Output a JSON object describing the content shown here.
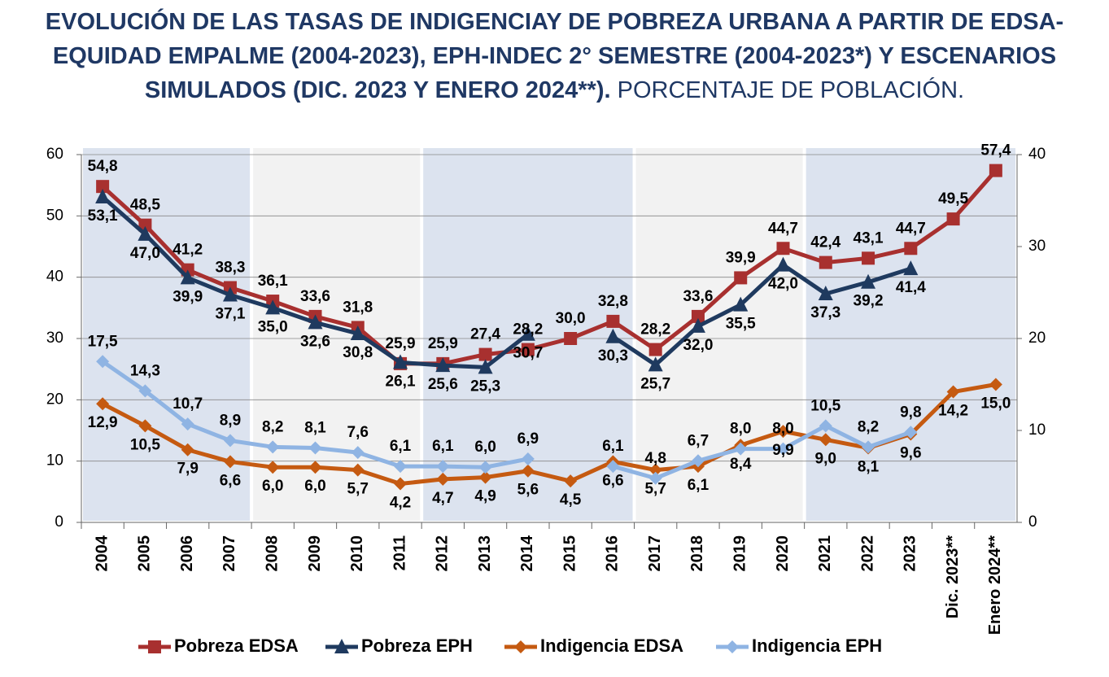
{
  "chart_data": {
    "type": "line",
    "title": "EVOLUCIÓN DE LAS TASAS DE INDIGENCIAY DE POBREZA URBANA A PARTIR DE EDSA-EQUIDAD EMPALME (2004-2023), EPH-INDEC 2°  SEMESTRE (2004-2023*) Y ESCENARIOS SIMULADOS (DIC. 2023 Y ENERO 2024**).",
    "subtitle": "PORCENTAJE DE POBLACIÓN.",
    "categories": [
      "2004",
      "2005",
      "2006",
      "2007",
      "2008",
      "2009",
      "2010",
      "2011",
      "2012",
      "2013",
      "2014",
      "2015",
      "2016",
      "2017",
      "2018",
      "2019",
      "2020",
      "2021",
      "2022",
      "2023",
      "Dic. 2023**",
      "Enero 2024**"
    ],
    "ylim": [
      0,
      60
    ],
    "yticks": [
      0,
      10,
      20,
      30,
      40,
      50,
      60
    ],
    "y2lim": [
      0,
      40
    ],
    "y2ticks": [
      0,
      10,
      20,
      30,
      40
    ],
    "grid": true,
    "legend": "bottom",
    "series": [
      {
        "name": "Pobreza EDSA",
        "color": "#a8302f",
        "marker": "square",
        "values": [
          54.8,
          48.5,
          41.2,
          38.3,
          36.1,
          33.6,
          31.8,
          25.9,
          25.9,
          27.4,
          28.2,
          30.0,
          32.8,
          28.2,
          33.6,
          39.9,
          44.7,
          42.4,
          43.1,
          44.7,
          49.5,
          57.4
        ],
        "value_labels": [
          "54,8",
          "48,5",
          "41,2",
          "38,3",
          "36,1",
          "33,6",
          "31,8",
          "25,9",
          "25,9",
          "27,4",
          "28,2",
          "30,0",
          "32,8",
          "28,2",
          "33,6",
          "39,9",
          "44,7",
          "42,4",
          "43,1",
          "44,7",
          "49,5",
          "57,4"
        ]
      },
      {
        "name": "Pobreza EPH",
        "color": "#1f3a5f",
        "marker": "triangle",
        "values": [
          53.1,
          47.0,
          39.9,
          37.1,
          35.0,
          32.6,
          30.8,
          26.1,
          25.6,
          25.3,
          30.7,
          null,
          30.3,
          25.7,
          32.0,
          35.5,
          42.0,
          37.3,
          39.2,
          41.4,
          null,
          null
        ],
        "value_labels": [
          "53,1",
          "47,0",
          "39,9",
          "37,1",
          "35,0",
          "32,6",
          "30,8",
          "26,1",
          "25,6",
          "25,3",
          "30,7",
          null,
          "30,3",
          "25,7",
          "32,0",
          "35,5",
          "42,0",
          "37,3",
          "39,2",
          "41,4",
          null,
          null
        ]
      },
      {
        "name": "Indigencia EDSA",
        "color": "#c55a11",
        "marker": "diamond",
        "axis": "y2",
        "values": [
          12.9,
          10.5,
          7.9,
          6.6,
          6.0,
          6.0,
          5.7,
          4.2,
          4.7,
          4.9,
          5.6,
          4.5,
          6.6,
          5.7,
          6.1,
          8.4,
          9.9,
          9.0,
          8.1,
          9.6,
          14.2,
          15.0
        ],
        "value_labels": [
          "12,9",
          "10,5",
          "7,9",
          "6,6",
          "6,0",
          "6,0",
          "5,7",
          "4,2",
          "4,7",
          "4,9",
          "5,6",
          "4,5",
          "6,6",
          "5,7",
          "6,1",
          "8,4",
          "9,9",
          "9,0",
          "8,1",
          "9,6",
          "14,2",
          "15,0"
        ]
      },
      {
        "name": "Indigencia EPH",
        "color": "#8fb4e3",
        "marker": "diamond",
        "axis": "y2",
        "values": [
          17.5,
          14.3,
          10.7,
          8.9,
          8.2,
          8.1,
          7.6,
          6.1,
          6.1,
          6.0,
          6.9,
          null,
          6.1,
          4.8,
          6.7,
          8.0,
          8.0,
          10.5,
          8.2,
          9.8,
          null,
          null
        ],
        "value_labels": [
          "17,5",
          "14,3",
          "10,7",
          "8,9",
          "8,2",
          "8,1",
          "7,6",
          "6,1",
          "6,1",
          "6,0",
          "6,9",
          null,
          "6,1",
          "4,8",
          "6,7",
          "8,0",
          "8,0",
          "10,5",
          "8,2",
          "9,8",
          null,
          null
        ]
      }
    ]
  }
}
